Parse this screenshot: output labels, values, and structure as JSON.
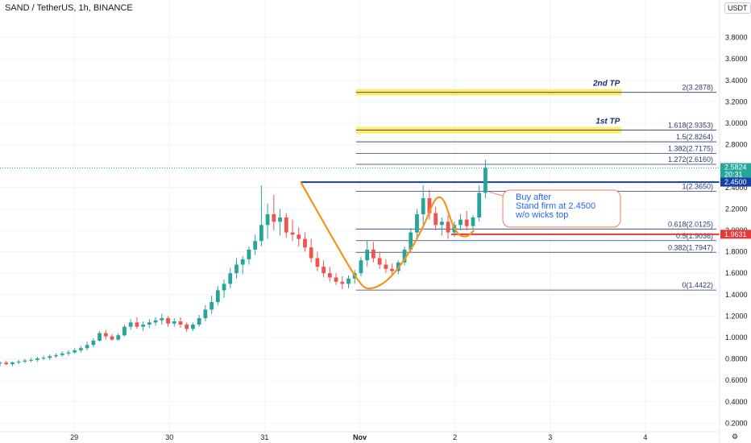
{
  "header": {
    "title": "SAND / TetherUS, 1h, BINANCE",
    "currency": "USDT"
  },
  "colors": {
    "up": "#26a69a",
    "down": "#ef5350",
    "fib_line": "#2a3a6e",
    "pattern": "#f7931a",
    "tp_band": "#ffe84a",
    "callout_border": "#f57c62",
    "callout_text": "#2962ff",
    "level_blue": "#1540a8",
    "level_red": "#e53935",
    "current_price": "#26a69a"
  },
  "chart_data": {
    "type": "candlestick",
    "x_ticks": [
      "29",
      "30",
      "31",
      "Nov",
      "2",
      "3",
      "4"
    ],
    "x_tick_positions_day": [
      0,
      1,
      2,
      3,
      4,
      5,
      6
    ],
    "y_ticks": [
      "0.2000",
      "0.4000",
      "0.6000",
      "0.8000",
      "1.0000",
      "1.2000",
      "1.4000",
      "1.6000",
      "1.8000",
      "2.0000",
      "2.2000",
      "2.4000",
      "2.6000",
      "2.8000",
      "3.0000",
      "3.2000",
      "3.4000",
      "3.6000",
      "3.8000"
    ],
    "y_range": [
      0.12,
      4.15
    ],
    "x_range_day": [
      -0.78,
      6.78
    ],
    "fib_levels": [
      {
        "label": "0(1.4422)",
        "value": 1.4422
      },
      {
        "label": "0.382(1.7947)",
        "value": 1.7947
      },
      {
        "label": "0.5(1.9036)",
        "value": 1.9036
      },
      {
        "label": "0.618(2.0125)",
        "value": 2.0125
      },
      {
        "label": "1(2.3650)",
        "value": 2.365
      },
      {
        "label": "1.272(2.6160)",
        "value": 2.616
      },
      {
        "label": "1.382(2.7175)",
        "value": 2.7175
      },
      {
        "label": "1.5(2.8264)",
        "value": 2.8264
      },
      {
        "label": "1.618(2.9353)",
        "value": 2.9353
      },
      {
        "label": "2(3.2878)",
        "value": 3.2878
      }
    ],
    "fib_x_start_day": 2.96,
    "take_profits": [
      {
        "label": "1st TP",
        "value": 2.935
      },
      {
        "label": "2nd TP",
        "value": 3.288
      }
    ],
    "tp_x_range_day": [
      2.96,
      5.75
    ],
    "resistance": {
      "value": 2.45,
      "label": "2.4500",
      "x_start_day": 2.38
    },
    "support": {
      "value": 1.9631,
      "label": "1.9631",
      "x_start_day": 3.96
    },
    "current_price": {
      "value": 2.5824,
      "label": "2.5824",
      "countdown": "20:31"
    },
    "cup_and_handle": {
      "points_day": [
        [
          2.38,
          2.45
        ],
        [
          2.68,
          1.98
        ],
        [
          2.98,
          1.52
        ],
        [
          3.1,
          1.43
        ],
        [
          3.35,
          1.56
        ],
        [
          3.65,
          1.98
        ],
        [
          3.84,
          2.42
        ],
        [
          4.0,
          1.97
        ],
        [
          4.12,
          1.93
        ],
        [
          4.2,
          2.0
        ]
      ]
    },
    "callout": {
      "lines": [
        "Buy after",
        "Stand firm at 2.4500",
        "w/o wicks top"
      ]
    },
    "candles": [
      [
        0.757,
        0.78,
        0.73,
        0.765
      ],
      [
        0.765,
        0.785,
        0.74,
        0.75
      ],
      [
        0.75,
        0.775,
        0.73,
        0.768
      ],
      [
        0.768,
        0.79,
        0.75,
        0.775
      ],
      [
        0.775,
        0.8,
        0.76,
        0.785
      ],
      [
        0.785,
        0.81,
        0.77,
        0.79
      ],
      [
        0.79,
        0.82,
        0.77,
        0.805
      ],
      [
        0.805,
        0.83,
        0.79,
        0.81
      ],
      [
        0.81,
        0.84,
        0.79,
        0.825
      ],
      [
        0.825,
        0.85,
        0.81,
        0.835
      ],
      [
        0.835,
        0.87,
        0.82,
        0.85
      ],
      [
        0.85,
        0.88,
        0.83,
        0.86
      ],
      [
        0.86,
        0.9,
        0.85,
        0.88
      ],
      [
        0.88,
        0.92,
        0.86,
        0.9
      ],
      [
        0.9,
        0.96,
        0.88,
        0.93
      ],
      [
        0.93,
        0.99,
        0.91,
        0.97
      ],
      [
        0.97,
        1.06,
        0.96,
        1.04
      ],
      [
        1.04,
        1.07,
        0.98,
        1.01
      ],
      [
        1.01,
        1.03,
        0.97,
        0.98
      ],
      [
        0.98,
        1.04,
        0.97,
        1.02
      ],
      [
        1.02,
        1.12,
        1.01,
        1.1
      ],
      [
        1.1,
        1.17,
        1.07,
        1.14
      ],
      [
        1.14,
        1.19,
        1.08,
        1.1
      ],
      [
        1.1,
        1.15,
        1.06,
        1.12
      ],
      [
        1.12,
        1.17,
        1.09,
        1.14
      ],
      [
        1.14,
        1.19,
        1.11,
        1.16
      ],
      [
        1.16,
        1.22,
        1.12,
        1.18
      ],
      [
        1.18,
        1.2,
        1.1,
        1.13
      ],
      [
        1.13,
        1.18,
        1.1,
        1.15
      ],
      [
        1.15,
        1.19,
        1.09,
        1.12
      ],
      [
        1.12,
        1.14,
        1.05,
        1.08
      ],
      [
        1.08,
        1.14,
        1.06,
        1.12
      ],
      [
        1.12,
        1.21,
        1.1,
        1.18
      ],
      [
        1.18,
        1.3,
        1.15,
        1.26
      ],
      [
        1.26,
        1.39,
        1.22,
        1.33
      ],
      [
        1.33,
        1.48,
        1.3,
        1.44
      ],
      [
        1.44,
        1.54,
        1.37,
        1.5
      ],
      [
        1.5,
        1.65,
        1.46,
        1.6
      ],
      [
        1.6,
        1.74,
        1.55,
        1.68
      ],
      [
        1.68,
        1.76,
        1.59,
        1.73
      ],
      [
        1.73,
        1.85,
        1.68,
        1.82
      ],
      [
        1.82,
        1.96,
        1.77,
        1.9
      ],
      [
        1.9,
        2.42,
        1.85,
        2.05
      ],
      [
        2.05,
        2.25,
        1.92,
        2.15
      ],
      [
        2.15,
        2.33,
        2.0,
        2.08
      ],
      [
        2.08,
        2.2,
        1.95,
        2.12
      ],
      [
        2.12,
        2.16,
        1.93,
        1.98
      ],
      [
        1.98,
        2.1,
        1.9,
        1.96
      ],
      [
        1.96,
        2.03,
        1.85,
        1.92
      ],
      [
        1.92,
        1.98,
        1.8,
        1.84
      ],
      [
        1.84,
        1.92,
        1.7,
        1.74
      ],
      [
        1.74,
        1.8,
        1.62,
        1.66
      ],
      [
        1.66,
        1.72,
        1.56,
        1.6
      ],
      [
        1.6,
        1.66,
        1.52,
        1.56
      ],
      [
        1.56,
        1.6,
        1.49,
        1.52
      ],
      [
        1.52,
        1.57,
        1.45,
        1.5
      ],
      [
        1.5,
        1.58,
        1.46,
        1.55
      ],
      [
        1.55,
        1.63,
        1.5,
        1.6
      ],
      [
        1.6,
        1.75,
        1.57,
        1.72
      ],
      [
        1.72,
        1.9,
        1.66,
        1.82
      ],
      [
        1.82,
        1.89,
        1.7,
        1.74
      ],
      [
        1.74,
        1.8,
        1.64,
        1.68
      ],
      [
        1.68,
        1.73,
        1.6,
        1.64
      ],
      [
        1.64,
        1.69,
        1.58,
        1.62
      ],
      [
        1.62,
        1.72,
        1.59,
        1.7
      ],
      [
        1.7,
        1.85,
        1.67,
        1.82
      ],
      [
        1.82,
        2.02,
        1.79,
        1.98
      ],
      [
        1.98,
        2.2,
        1.94,
        2.15
      ],
      [
        2.15,
        2.42,
        2.05,
        2.3
      ],
      [
        2.3,
        2.38,
        2.1,
        2.16
      ],
      [
        2.16,
        2.22,
        2.0,
        2.05
      ],
      [
        2.05,
        2.12,
        1.95,
        2.08
      ],
      [
        2.08,
        2.14,
        1.92,
        1.98
      ],
      [
        1.98,
        2.08,
        1.94,
        2.05
      ],
      [
        2.05,
        2.15,
        2.0,
        2.1
      ],
      [
        2.1,
        2.18,
        2.0,
        2.04
      ],
      [
        2.04,
        2.14,
        2.01,
        2.12
      ],
      [
        2.12,
        2.42,
        2.08,
        2.35
      ],
      [
        2.35,
        2.66,
        2.3,
        2.5824
      ]
    ]
  }
}
